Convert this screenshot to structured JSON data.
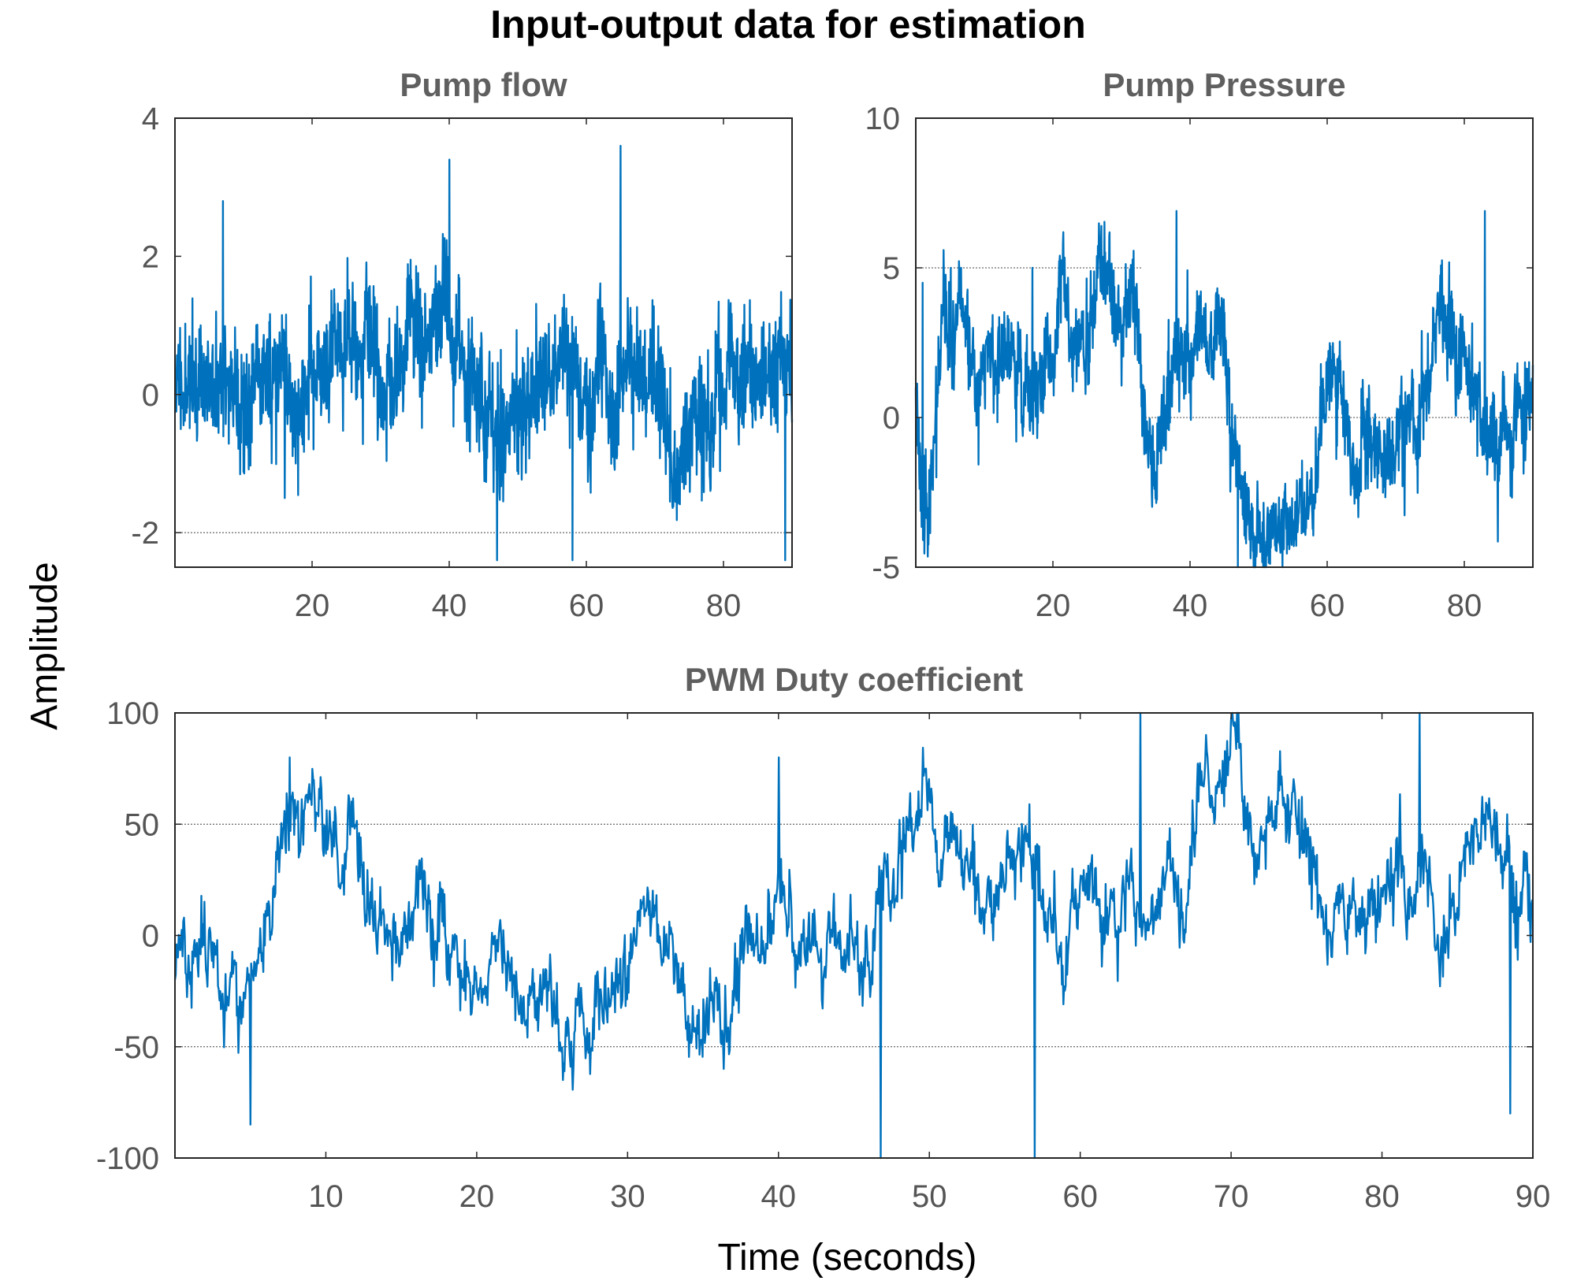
{
  "chart_data": {
    "type": "line",
    "title": "Input-output data for estimation",
    "ylabel": "Amplitude",
    "xlabel": "Time (seconds)",
    "color": "#0072bd",
    "panels": [
      {
        "id": "pump-flow",
        "type": "line",
        "title": "Pump flow",
        "xlim": [
          0,
          90
        ],
        "ylim": [
          -2.5,
          4
        ],
        "xticks": [
          20,
          40,
          60,
          80
        ],
        "yticks": [
          -2,
          0,
          2,
          4
        ],
        "hgrid": [
          -2
        ],
        "seed": 11,
        "mean": 0.2,
        "sigma": 0.55,
        "noise": 0.95,
        "clamp": [
          -2.45,
          3.65
        ],
        "anchors": [
          [
            0,
            0
          ],
          [
            6,
            1.2
          ],
          [
            7,
            2.8
          ],
          [
            16,
            -1.5
          ],
          [
            40,
            3.4
          ],
          [
            47,
            -2.4
          ],
          [
            58,
            -2.4
          ],
          [
            65,
            3.6
          ],
          [
            89,
            -2.4
          ]
        ]
      },
      {
        "id": "pump-pressure",
        "type": "line",
        "title": "Pump Pressure",
        "xlim": [
          0,
          90
        ],
        "ylim": [
          -5,
          10
        ],
        "xticks": [
          20,
          40,
          60,
          80
        ],
        "yticks": [
          -5,
          0,
          5,
          10
        ],
        "hgrid_partial": [
          {
            "y": 5,
            "x": [
              0,
              33
            ]
          },
          {
            "y": -5,
            "x": [
              0,
              33
            ]
          },
          {
            "y": 0,
            "x": [
              33,
              90
            ]
          }
        ],
        "seed": 23,
        "mean": 0,
        "sigma": 1.9,
        "noise": 1.5,
        "clamp": [
          -5,
          7
        ],
        "anchors": [
          [
            0,
            1
          ],
          [
            1,
            4.5
          ],
          [
            3,
            -2
          ],
          [
            17,
            5
          ],
          [
            38,
            6.9
          ],
          [
            47,
            -5
          ],
          [
            83,
            6.9
          ]
        ]
      },
      {
        "id": "pwm-duty",
        "type": "line",
        "title": "PWM Duty coefficient",
        "xlim": [
          0,
          90
        ],
        "ylim": [
          -100,
          100
        ],
        "xticks": [
          10,
          20,
          30,
          40,
          50,
          60,
          70,
          80,
          90
        ],
        "yticks": [
          -100,
          -50,
          0,
          50,
          100
        ],
        "hgrid": [
          50,
          -50
        ],
        "seed": 37,
        "mean": 0,
        "sigma": 30,
        "noise": 14,
        "clamp": [
          -100,
          100
        ],
        "anchors": [
          [
            0,
            -20
          ],
          [
            5,
            -85
          ],
          [
            7.6,
            80
          ],
          [
            40,
            80
          ],
          [
            46.8,
            -100
          ],
          [
            57,
            -100
          ],
          [
            64,
            100
          ],
          [
            82.5,
            100
          ],
          [
            88.5,
            -80
          ]
        ]
      }
    ]
  }
}
